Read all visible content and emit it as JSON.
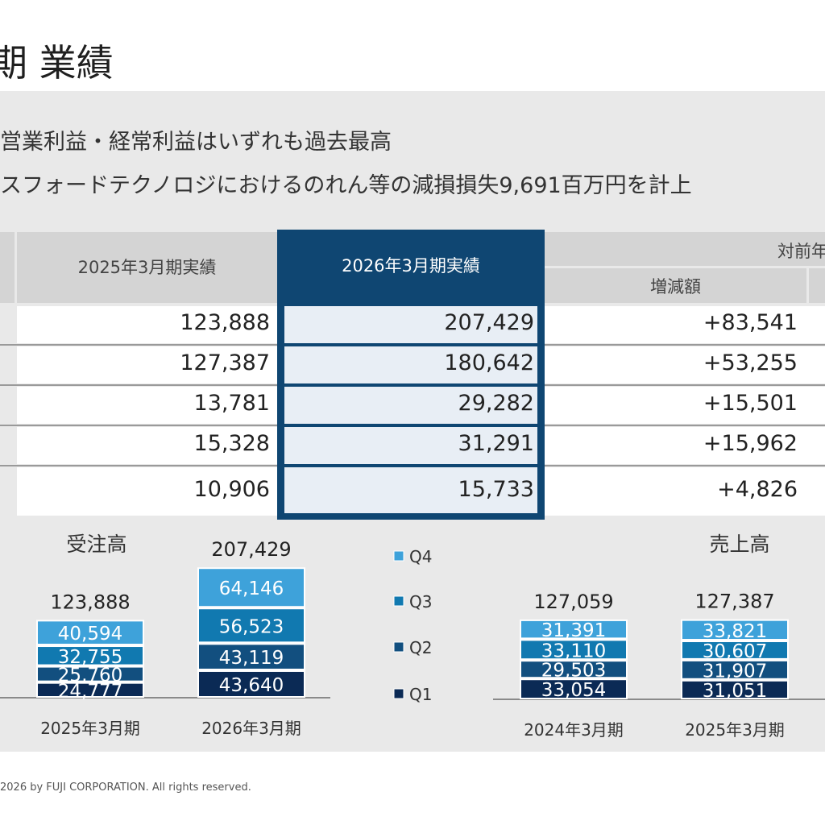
{
  "page": {
    "title": "期 業績",
    "bullets": [
      "営業利益・経常利益はいずれも過去最高",
      "スフォードテクノロジにおけるのれん等の減損損失9,691百万円を計上"
    ],
    "footer": "2026 by FUJI CORPORATION. All rights reserved."
  },
  "table": {
    "headers": {
      "prev_year": "2025年3月期実績",
      "curr_year": "2026年3月期実績",
      "yoy_group": "対前年",
      "change": "増減額"
    },
    "rows": [
      {
        "prev": "123,888",
        "curr": "207,429",
        "change": "+83,541"
      },
      {
        "prev": "127,387",
        "curr": "180,642",
        "change": "+53,255"
      },
      {
        "prev": "13,781",
        "curr": "29,282",
        "change": "+15,501"
      },
      {
        "prev": "15,328",
        "curr": "31,291",
        "change": "+15,962"
      },
      {
        "prev": "10,906",
        "curr": "15,733",
        "change": "+4,826"
      }
    ]
  },
  "chart_data": [
    {
      "type": "bar",
      "stacked": true,
      "title": "受注高",
      "categories": [
        "2025年3月期",
        "2026年3月期"
      ],
      "totals": [
        "123,888",
        "207,429"
      ],
      "series": [
        {
          "name": "Q1",
          "values": [
            24777,
            43640
          ],
          "labels": [
            "24,777",
            "43,640"
          ]
        },
        {
          "name": "Q2",
          "values": [
            25760,
            43119
          ],
          "labels": [
            "25,760",
            "43,119"
          ]
        },
        {
          "name": "Q3",
          "values": [
            32755,
            56523
          ],
          "labels": [
            "32,755",
            "56,523"
          ]
        },
        {
          "name": "Q4",
          "values": [
            40594,
            64146
          ],
          "labels": [
            "40,594",
            "64,146"
          ]
        }
      ]
    },
    {
      "type": "bar",
      "stacked": true,
      "title": "売上高",
      "categories": [
        "2024年3月期",
        "2025年3月期"
      ],
      "totals": [
        "127,059",
        "127,387"
      ],
      "series": [
        {
          "name": "Q1",
          "values": [
            33054,
            31051
          ],
          "labels": [
            "33,054",
            "31,051"
          ]
        },
        {
          "name": "Q2",
          "values": [
            29503,
            31907
          ],
          "labels": [
            "29,503",
            "31,907"
          ]
        },
        {
          "name": "Q3",
          "values": [
            33110,
            30607
          ],
          "labels": [
            "33,110",
            "30,607"
          ]
        },
        {
          "name": "Q4",
          "values": [
            31391,
            33821
          ],
          "labels": [
            "31,391",
            "33,821"
          ]
        }
      ]
    }
  ],
  "legend": {
    "items": [
      "Q4",
      "Q3",
      "Q2",
      "Q1"
    ],
    "colors": {
      "Q4": "#3ea2da",
      "Q3": "#1179b0",
      "Q2": "#124f7f",
      "Q1": "#0b2a55"
    }
  }
}
